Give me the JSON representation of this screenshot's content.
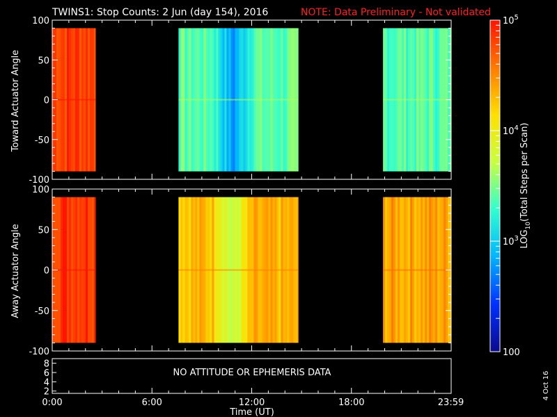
{
  "title": "TWINS1: Stop Counts:  2 Jun (day 154), 2016",
  "note": "NOTE: Data Preliminary - Not validated",
  "date_stamp": "4 Oct 16",
  "x_axis_label": "Time (UT)",
  "x_tick_labels": [
    "0:00",
    "6:00",
    "12:00",
    "18:00",
    "23:59"
  ],
  "attitude_message": "NO ATTITUDE OR EPHEMERIS DATA",
  "attitude_y_ticks": [
    "8",
    "6",
    "4",
    "2"
  ],
  "colorbar": {
    "label_prefix": "LOG",
    "label_sub": "10",
    "label_suffix": "(Total Steps per Scan)",
    "tick_labels": [
      "10",
      "10",
      "10",
      "100"
    ],
    "tick_exponents": [
      "5",
      "4",
      "3",
      ""
    ],
    "colors": [
      "#0a0a8c",
      "#0030ff",
      "#00b4ff",
      "#30ffd0",
      "#c8ff40",
      "#ffe000",
      "#ff7a00",
      "#ff1400"
    ]
  },
  "chart_data": [
    {
      "type": "heatmap",
      "title": "",
      "ylabel": "Toward Actuator Angle",
      "xlabel": "",
      "xlim": [
        0,
        24
      ],
      "ylim": [
        -100,
        100
      ],
      "y_ticks": [
        "100",
        "50",
        "0",
        "-50",
        "-100"
      ],
      "value_scale": "log10",
      "value_range": [
        100,
        100000
      ],
      "data_segments": [
        {
          "start_hr": 0.0,
          "end_hr": 2.6,
          "typical_counts": 70000
        },
        {
          "start_hr": 7.6,
          "end_hr": 14.8,
          "typical_counts": 2500,
          "min_near_hr": 10.8
        },
        {
          "start_hr": 19.9,
          "end_hr": 23.99,
          "typical_counts": 2500
        }
      ]
    },
    {
      "type": "heatmap",
      "title": "",
      "ylabel": "Away Actuator Angle",
      "xlabel": "Time (UT)",
      "xlim": [
        0,
        24
      ],
      "ylim": [
        -100,
        100
      ],
      "y_ticks": [
        "100",
        "50",
        "0",
        "-50",
        "-100"
      ],
      "value_scale": "log10",
      "value_range": [
        100,
        100000
      ],
      "data_segments": [
        {
          "start_hr": 0.0,
          "end_hr": 2.6,
          "typical_counts": 80000
        },
        {
          "start_hr": 7.6,
          "end_hr": 14.8,
          "typical_counts": 20000,
          "min_near_hr": 10.8
        },
        {
          "start_hr": 19.9,
          "end_hr": 23.99,
          "typical_counts": 25000
        }
      ]
    }
  ]
}
